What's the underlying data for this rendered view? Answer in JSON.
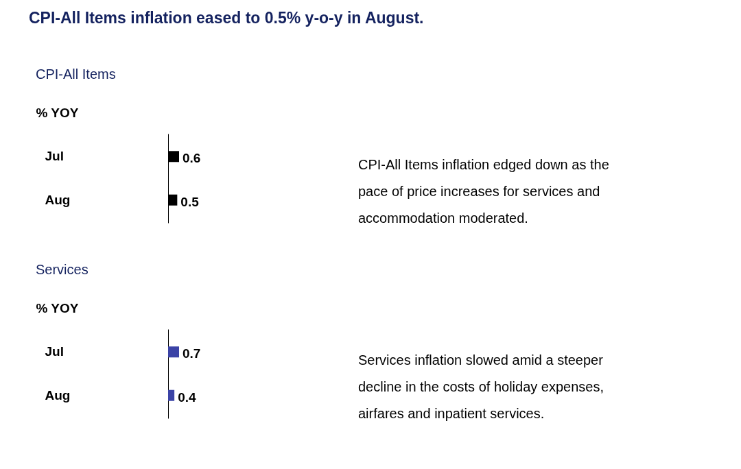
{
  "chart_data": [
    {
      "type": "other",
      "title": "CPI-All Items inflation eased to 0.5% y-o-y in August."
    },
    {
      "type": "bar",
      "orientation": "horizontal",
      "title": "CPI-All Items",
      "ylabel": "% YOY",
      "categories": [
        "Jul",
        "Aug"
      ],
      "values": [
        0.6,
        0.5
      ],
      "color": "#000000",
      "data_labels": true
    },
    {
      "type": "other",
      "annotations": [
        "CPI-All Items inflation edged down as the pace of price increases for services and accommodation moderated."
      ]
    },
    {
      "type": "bar",
      "orientation": "horizontal",
      "title": "Services",
      "ylabel": "% YOY",
      "categories": [
        "Jul",
        "Aug"
      ],
      "values": [
        0.7,
        0.4
      ],
      "color": "#3b43a6",
      "data_labels": true
    },
    {
      "type": "other",
      "annotations": [
        "Services inflation slowed amid a steeper decline in the costs of holiday expenses, airfares and inpatient services."
      ]
    }
  ]
}
